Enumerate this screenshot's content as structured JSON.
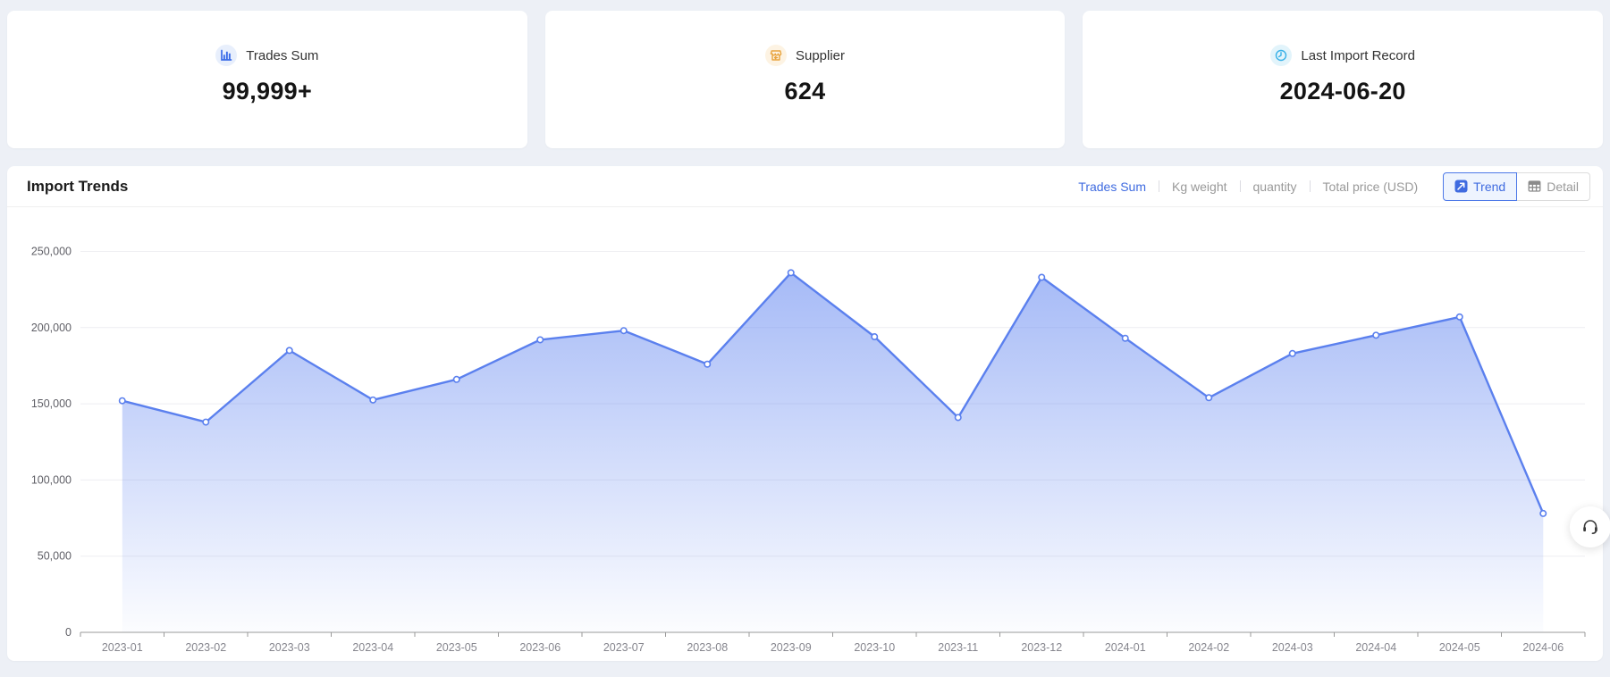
{
  "page": {
    "background": "#edf0f6"
  },
  "stats": [
    {
      "icon": "bar-chart-icon",
      "icon_color": "#3a6ce8",
      "icon_bg": "#e8effc",
      "label": "Trades Sum",
      "value": "99,999+"
    },
    {
      "icon": "store-icon",
      "icon_color": "#e8a33d",
      "icon_bg": "#fdf3e3",
      "label": "Supplier",
      "value": "624"
    },
    {
      "icon": "clock-icon",
      "icon_color": "#38b1e8",
      "icon_bg": "#e2f4fb",
      "label": "Last Import Record",
      "value": "2024-06-20"
    }
  ],
  "trends": {
    "title": "Import Trends",
    "metric_tabs": [
      {
        "label": "Trades Sum",
        "active": true
      },
      {
        "label": "Kg weight",
        "active": false
      },
      {
        "label": "quantity",
        "active": false
      },
      {
        "label": "Total price (USD)",
        "active": false
      }
    ],
    "view_toggle": [
      {
        "label": "Trend",
        "icon": "trend-icon",
        "active": true
      },
      {
        "label": "Detail",
        "icon": "table-icon",
        "active": false
      }
    ],
    "accent_blue": "#3f6be0"
  },
  "chart_data": {
    "type": "area",
    "title": "Import Trends",
    "series_name": "Trades Sum",
    "categories": [
      "2023-01",
      "2023-02",
      "2023-03",
      "2023-04",
      "2023-05",
      "2023-06",
      "2023-07",
      "2023-08",
      "2023-09",
      "2023-10",
      "2023-11",
      "2023-12",
      "2024-01",
      "2024-02",
      "2024-03",
      "2024-04",
      "2024-05",
      "2024-06"
    ],
    "values": [
      152000,
      138000,
      185000,
      152500,
      166000,
      192000,
      198000,
      176000,
      236000,
      194000,
      141000,
      233000,
      193000,
      154000,
      183000,
      195000,
      207000,
      78000
    ],
    "ylim": [
      0,
      250000
    ],
    "yticks": [
      0,
      50000,
      100000,
      150000,
      200000,
      250000
    ],
    "grid": true,
    "legend": "none",
    "line_color": "#5b80ee",
    "area_top_color": "rgba(93,130,240,0.55)",
    "area_bottom_color": "rgba(93,130,240,0.02)",
    "axis_color": "#999999",
    "grid_color": "#eeeef2",
    "x_label_color": "#86868e",
    "y_label_color": "#5f5f66"
  },
  "floating": {
    "icon": "headset-icon"
  }
}
